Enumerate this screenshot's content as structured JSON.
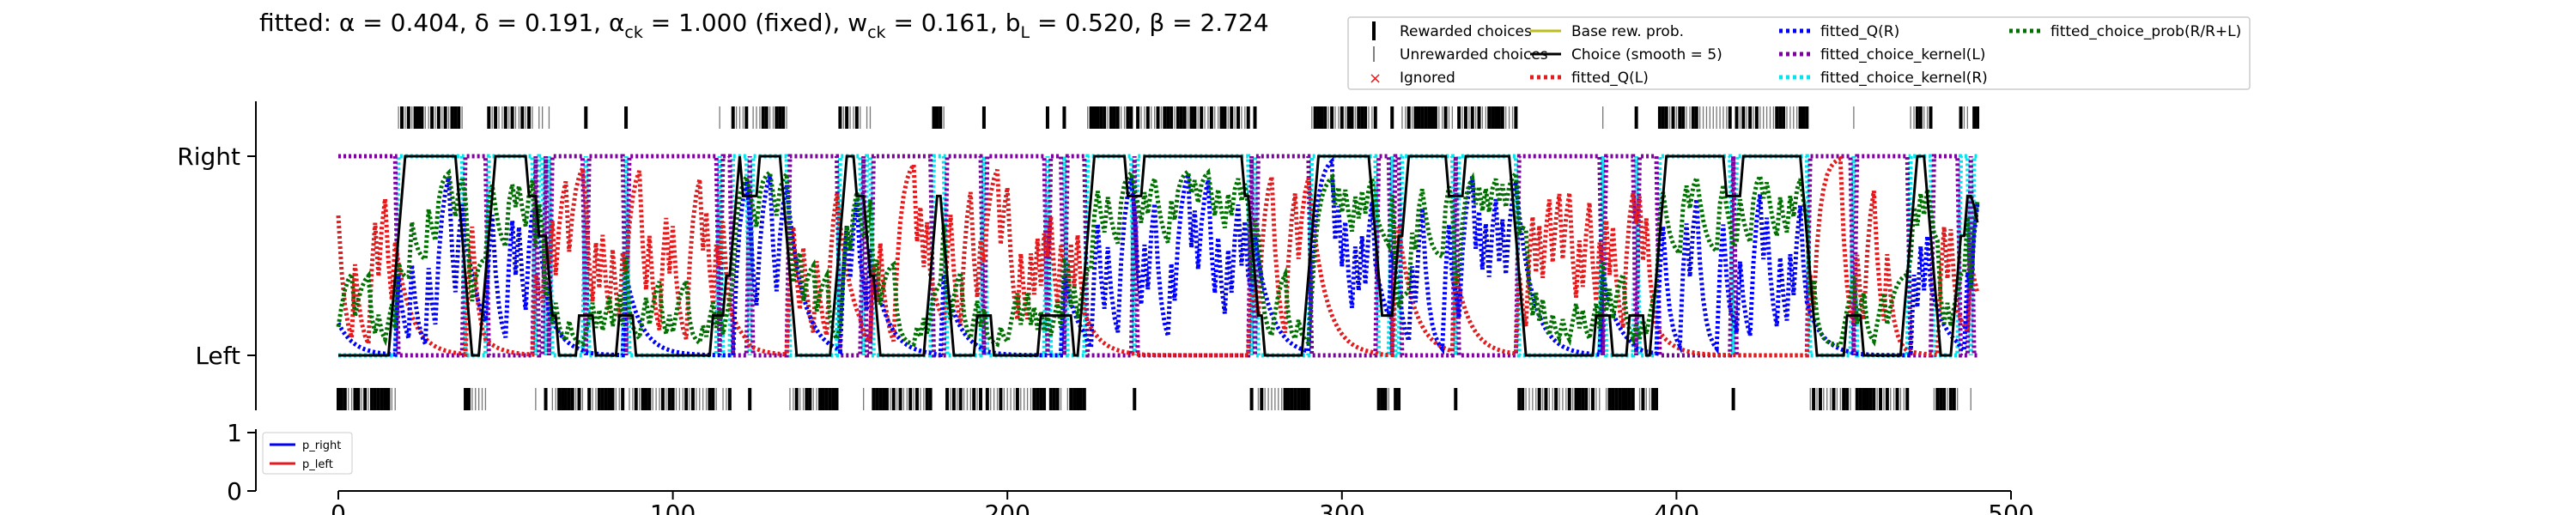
{
  "chart_data": [
    {
      "type": "line",
      "title": "fitted: α = 0.404, δ = 0.191, α_ck = 1.000 (fixed), w_ck = 0.161, b_L = 0.520, β = 2.724",
      "title_parts": {
        "lead": "fitted: α = 0.404, δ = 0.191, α",
        "sub_ck": "ck",
        "after_ack": " = 1.000 (fixed), w",
        "sub_ck2": "ck",
        "after_wck": " = 0.161, b",
        "sub_L": "L",
        "tail": " = 0.520, β = 2.724"
      },
      "xlabel": "",
      "ylabel": "",
      "xlim": [
        -20,
        500
      ],
      "ylim": [
        -0.35,
        1.35
      ],
      "x_ticks": [
        0,
        100,
        200,
        300,
        400,
        500
      ],
      "x_tick_labels": [
        "0",
        "100",
        "200",
        "300",
        "400",
        "500"
      ],
      "y_ticks": [
        0,
        1
      ],
      "y_tick_labels": [
        "Left",
        "Right"
      ],
      "grid": false,
      "legend_position": "top-right, above axes",
      "legend": [
        {
          "label": "Rewarded choices",
          "marker": "thick-vline",
          "color": "#000000"
        },
        {
          "label": "Unrewarded choices",
          "marker": "thin-vline",
          "color": "#555555"
        },
        {
          "label": "Ignored",
          "marker": "x",
          "color": "#e41a1c"
        },
        {
          "label": "Base rew. prob.",
          "marker": "line",
          "color": "#bcbd22"
        },
        {
          "label": "Choice (smooth = 5)",
          "marker": "line",
          "color": "#000000"
        },
        {
          "label": "fitted_Q(L)",
          "marker": "dotted",
          "color": "#e41a1c"
        },
        {
          "label": "fitted_Q(R)",
          "marker": "dotted",
          "color": "#0000ff"
        },
        {
          "label": "fitted_choice_kernel(L)",
          "marker": "dotted",
          "color": "#7f00a0"
        },
        {
          "label": "fitted_choice_kernel(R)",
          "marker": "dotted",
          "color": "#00e5ee"
        },
        {
          "label": "fitted_choice_prob(R/R+L)",
          "marker": "dotted",
          "color": "#007000"
        }
      ],
      "n_trials": 491,
      "series_colors": {
        "choice_smooth": "#000000",
        "q_left": "#e41a1c",
        "q_right": "#0000ff",
        "kernel_left": "#7f00a0",
        "kernel_right": "#00e5ee",
        "choice_prob": "#007000"
      },
      "choice_blocks": [
        {
          "side": "left",
          "start": 0,
          "end": 18
        },
        {
          "side": "right",
          "start": 18,
          "end": 38
        },
        {
          "side": "left",
          "start": 38,
          "end": 45
        },
        {
          "side": "right",
          "start": 45,
          "end": 62
        },
        {
          "side": "left",
          "start": 62,
          "end": 118
        },
        {
          "side": "right",
          "start": 118,
          "end": 135
        },
        {
          "side": "left",
          "start": 135,
          "end": 150
        },
        {
          "side": "right",
          "start": 150,
          "end": 160
        },
        {
          "side": "left",
          "start": 160,
          "end": 178
        },
        {
          "side": "right",
          "start": 178,
          "end": 182
        },
        {
          "side": "left",
          "start": 182,
          "end": 224
        },
        {
          "side": "right",
          "start": 224,
          "end": 275
        },
        {
          "side": "left",
          "start": 275,
          "end": 290
        },
        {
          "side": "right",
          "start": 290,
          "end": 310
        },
        {
          "side": "left",
          "start": 310,
          "end": 318
        },
        {
          "side": "right",
          "start": 318,
          "end": 352
        },
        {
          "side": "left",
          "start": 352,
          "end": 396
        },
        {
          "side": "right",
          "start": 396,
          "end": 440
        },
        {
          "side": "left",
          "start": 440,
          "end": 470
        },
        {
          "side": "right",
          "start": 470,
          "end": 478
        },
        {
          "side": "left",
          "start": 478,
          "end": 486
        },
        {
          "side": "right",
          "start": 486,
          "end": 491
        }
      ]
    },
    {
      "type": "line",
      "xlim": [
        -20,
        500
      ],
      "ylim": [
        0,
        1
      ],
      "y_ticks": [
        0,
        1
      ],
      "y_tick_labels": [
        "0",
        "1"
      ],
      "legend_position": "upper-left",
      "series": [
        {
          "name": "p_right",
          "color": "#0000ff",
          "values": []
        },
        {
          "name": "p_left",
          "color": "#e41a1c",
          "values": []
        }
      ]
    }
  ]
}
